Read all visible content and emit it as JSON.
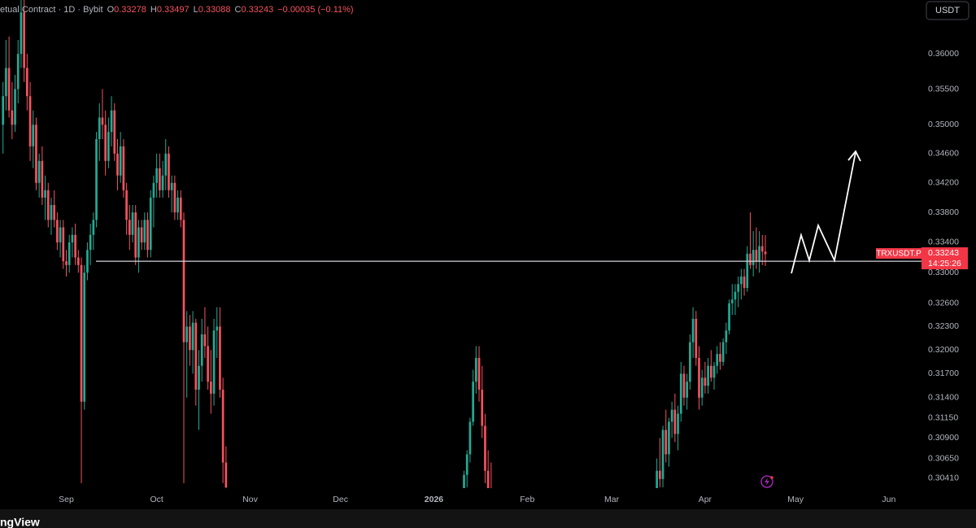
{
  "chart_data": {
    "type": "candlestick",
    "x": [
      -4,
      -3,
      -2,
      -1,
      0,
      1,
      2,
      3,
      4,
      5,
      6,
      7,
      8,
      9,
      10,
      11,
      12,
      13,
      14,
      15,
      16,
      17,
      18,
      19,
      20,
      21,
      22,
      23,
      24,
      25,
      26,
      27,
      28,
      29,
      30,
      31,
      32,
      33,
      34,
      35,
      36,
      37,
      38,
      39,
      40,
      41,
      42,
      43,
      44,
      45,
      46,
      47,
      48,
      49,
      50,
      51,
      52,
      53,
      54,
      55,
      56,
      57,
      58,
      59,
      60,
      61,
      62,
      63,
      64,
      65,
      66,
      67,
      68,
      69,
      70,
      149,
      150,
      151,
      152,
      153,
      154,
      155,
      156,
      157,
      158,
      213,
      214,
      215,
      216,
      217,
      218,
      219,
      220,
      221,
      222,
      223,
      224,
      225,
      226,
      227,
      228,
      229,
      230,
      231,
      232,
      233,
      234,
      235,
      236,
      237,
      238,
      239,
      240,
      241,
      242,
      243,
      244,
      245,
      246,
      247,
      248,
      249
    ],
    "open": [
      0.35,
      0.354,
      0.358,
      0.352,
      0.35,
      0.355,
      0.36,
      0.366,
      0.358,
      0.354,
      0.347,
      0.35,
      0.342,
      0.345,
      0.34,
      0.341,
      0.337,
      0.339,
      0.337,
      0.334,
      0.336,
      0.3315,
      0.331,
      0.334,
      0.335,
      0.332,
      0.331,
      0.3135,
      0.33,
      0.333,
      0.335,
      0.337,
      0.348,
      0.351,
      0.35,
      0.345,
      0.349,
      0.352,
      0.346,
      0.343,
      0.347,
      0.341,
      0.337,
      0.335,
      0.338,
      0.332,
      0.336,
      0.334,
      0.337,
      0.333,
      0.34,
      0.342,
      0.344,
      0.341,
      0.343,
      0.346,
      0.341,
      0.342,
      0.338,
      0.34,
      0.337,
      0.321,
      0.323,
      0.32,
      0.3235,
      0.315,
      0.318,
      0.322,
      0.3205,
      0.316,
      0.3145,
      0.3225,
      0.323,
      0.315,
      0.306,
      0.302,
      0.3045,
      0.307,
      0.311,
      0.316,
      0.319,
      0.315,
      0.3105,
      0.305,
      0.302,
      0.302,
      0.305,
      0.304,
      0.31,
      0.307,
      0.311,
      0.3125,
      0.3095,
      0.312,
      0.317,
      0.314,
      0.316,
      0.321,
      0.324,
      0.319,
      0.314,
      0.3165,
      0.3155,
      0.318,
      0.3165,
      0.318,
      0.3195,
      0.3185,
      0.321,
      0.3225,
      0.326,
      0.3265,
      0.3275,
      0.3285,
      0.3295,
      0.328,
      0.3325,
      0.331,
      0.333,
      0.3315,
      0.3335,
      0.33278
    ],
    "high": [
      0.356,
      0.362,
      0.3625,
      0.356,
      0.357,
      0.362,
      0.37,
      0.37,
      0.36,
      0.356,
      0.352,
      0.351,
      0.346,
      0.347,
      0.343,
      0.342,
      0.34,
      0.341,
      0.338,
      0.337,
      0.337,
      0.333,
      0.335,
      0.336,
      0.3365,
      0.333,
      0.332,
      0.331,
      0.334,
      0.3365,
      0.338,
      0.349,
      0.353,
      0.355,
      0.352,
      0.351,
      0.354,
      0.353,
      0.348,
      0.349,
      0.348,
      0.342,
      0.339,
      0.339,
      0.339,
      0.337,
      0.337,
      0.338,
      0.338,
      0.341,
      0.343,
      0.346,
      0.346,
      0.345,
      0.348,
      0.347,
      0.343,
      0.343,
      0.341,
      0.341,
      0.338,
      0.325,
      0.3245,
      0.325,
      0.324,
      0.32,
      0.324,
      0.3255,
      0.323,
      0.32,
      0.324,
      0.3255,
      0.3255,
      0.3165,
      0.308,
      0.305,
      0.3075,
      0.3115,
      0.3175,
      0.3205,
      0.3205,
      0.318,
      0.312,
      0.3075,
      0.306,
      0.3065,
      0.309,
      0.3105,
      0.3125,
      0.3115,
      0.3135,
      0.3145,
      0.313,
      0.3185,
      0.318,
      0.317,
      0.322,
      0.3255,
      0.325,
      0.3205,
      0.3175,
      0.3185,
      0.319,
      0.32,
      0.3185,
      0.3205,
      0.321,
      0.3215,
      0.3235,
      0.3265,
      0.3285,
      0.3285,
      0.3295,
      0.3305,
      0.3305,
      0.3335,
      0.338,
      0.3355,
      0.336,
      0.3355,
      0.335,
      0.33497
    ],
    "low": [
      0.346,
      0.352,
      0.351,
      0.348,
      0.349,
      0.353,
      0.358,
      0.356,
      0.352,
      0.345,
      0.344,
      0.341,
      0.34,
      0.339,
      0.337,
      0.336,
      0.335,
      0.336,
      0.333,
      0.332,
      0.3305,
      0.3295,
      0.33,
      0.332,
      0.331,
      0.33,
      0.3035,
      0.3125,
      0.329,
      0.331,
      0.333,
      0.336,
      0.345,
      0.348,
      0.343,
      0.344,
      0.347,
      0.345,
      0.341,
      0.342,
      0.34,
      0.335,
      0.333,
      0.334,
      0.331,
      0.33,
      0.333,
      0.333,
      0.332,
      0.332,
      0.336,
      0.34,
      0.34,
      0.34,
      0.341,
      0.34,
      0.338,
      0.337,
      0.337,
      0.336,
      0.3035,
      0.314,
      0.318,
      0.317,
      0.313,
      0.31,
      0.316,
      0.319,
      0.315,
      0.312,
      0.313,
      0.319,
      0.314,
      0.3035,
      0.302,
      0.3,
      0.303,
      0.306,
      0.3105,
      0.3145,
      0.3135,
      0.309,
      0.3035,
      0.3,
      0.299,
      0.301,
      0.303,
      0.303,
      0.306,
      0.3055,
      0.309,
      0.3085,
      0.3075,
      0.311,
      0.313,
      0.3125,
      0.315,
      0.319,
      0.318,
      0.3125,
      0.313,
      0.3145,
      0.3145,
      0.316,
      0.315,
      0.317,
      0.3175,
      0.318,
      0.3195,
      0.322,
      0.3245,
      0.3245,
      0.3255,
      0.3265,
      0.327,
      0.3275,
      0.3305,
      0.3295,
      0.3305,
      0.33,
      0.331,
      0.33088
    ],
    "close": [
      0.354,
      0.358,
      0.352,
      0.35,
      0.355,
      0.36,
      0.366,
      0.358,
      0.354,
      0.347,
      0.35,
      0.342,
      0.345,
      0.34,
      0.341,
      0.337,
      0.339,
      0.337,
      0.334,
      0.336,
      0.3315,
      0.331,
      0.334,
      0.335,
      0.332,
      0.331,
      0.3135,
      0.33,
      0.333,
      0.335,
      0.337,
      0.348,
      0.351,
      0.35,
      0.345,
      0.349,
      0.352,
      0.346,
      0.343,
      0.347,
      0.341,
      0.337,
      0.335,
      0.338,
      0.332,
      0.336,
      0.334,
      0.337,
      0.333,
      0.34,
      0.342,
      0.344,
      0.341,
      0.343,
      0.346,
      0.341,
      0.342,
      0.338,
      0.34,
      0.337,
      0.321,
      0.323,
      0.32,
      0.3235,
      0.315,
      0.318,
      0.322,
      0.3205,
      0.316,
      0.3145,
      0.3225,
      0.323,
      0.315,
      0.306,
      0.303,
      0.3045,
      0.307,
      0.311,
      0.316,
      0.319,
      0.315,
      0.3105,
      0.305,
      0.302,
      0.3,
      0.305,
      0.304,
      0.31,
      0.307,
      0.311,
      0.3125,
      0.3095,
      0.312,
      0.317,
      0.314,
      0.316,
      0.321,
      0.324,
      0.319,
      0.314,
      0.3165,
      0.3155,
      0.318,
      0.3165,
      0.318,
      0.3195,
      0.3185,
      0.321,
      0.3225,
      0.326,
      0.3265,
      0.3275,
      0.3285,
      0.3295,
      0.328,
      0.3325,
      0.331,
      0.333,
      0.3315,
      0.3335,
      0.33278,
      0.33243
    ],
    "up_color": "#22ab94",
    "down_color": "#f7525f",
    "xlim": [
      -5,
      293
    ],
    "xticks": [
      {
        "value": 17,
        "label": "Sep"
      },
      {
        "value": 47,
        "label": "Oct"
      },
      {
        "value": 78,
        "label": "Nov"
      },
      {
        "value": 108,
        "label": "Dec"
      },
      {
        "value": 139,
        "label": "2026"
      },
      {
        "value": 170,
        "label": "Feb"
      },
      {
        "value": 198,
        "label": "Mar"
      },
      {
        "value": 229,
        "label": "Apr"
      },
      {
        "value": 259,
        "label": "May"
      },
      {
        "value": 290,
        "label": "Jun"
      }
    ],
    "ylim": [
      0.3029,
      0.3678
    ],
    "log_scale": true,
    "grid": false,
    "yticks": [
      {
        "value": 0.36,
        "label": "0.36000"
      },
      {
        "value": 0.355,
        "label": "0.35500"
      },
      {
        "value": 0.35,
        "label": "0.35000"
      },
      {
        "value": 0.346,
        "label": "0.34600"
      },
      {
        "value": 0.342,
        "label": "0.34200"
      },
      {
        "value": 0.338,
        "label": "0.33800"
      },
      {
        "value": 0.334,
        "label": "0.33400"
      },
      {
        "value": 0.33,
        "label": "0.33000"
      },
      {
        "value": 0.326,
        "label": "0.32600"
      },
      {
        "value": 0.323,
        "label": "0.32300"
      },
      {
        "value": 0.32,
        "label": "0.32000"
      },
      {
        "value": 0.317,
        "label": "0.31700"
      },
      {
        "value": 0.314,
        "label": "0.31400"
      },
      {
        "value": 0.3115,
        "label": "0.31150"
      },
      {
        "value": 0.309,
        "label": "0.30900"
      },
      {
        "value": 0.3065,
        "label": "0.30650"
      },
      {
        "value": 0.3041,
        "label": "0.30410"
      }
    ],
    "level_line": 0.3315,
    "level_color": "#d1d4dc"
  },
  "ui": {
    "header_title": "etual Contract · 1D · Bybit",
    "ohlc_labels": [
      "O",
      "H",
      "L",
      "C"
    ],
    "change": "−0.00035 (−0.11%)",
    "currency_button": "USDT",
    "symbol_tag": "TRXUSDT.P",
    "countdown": "14:25:26",
    "logo": "ngView"
  }
}
